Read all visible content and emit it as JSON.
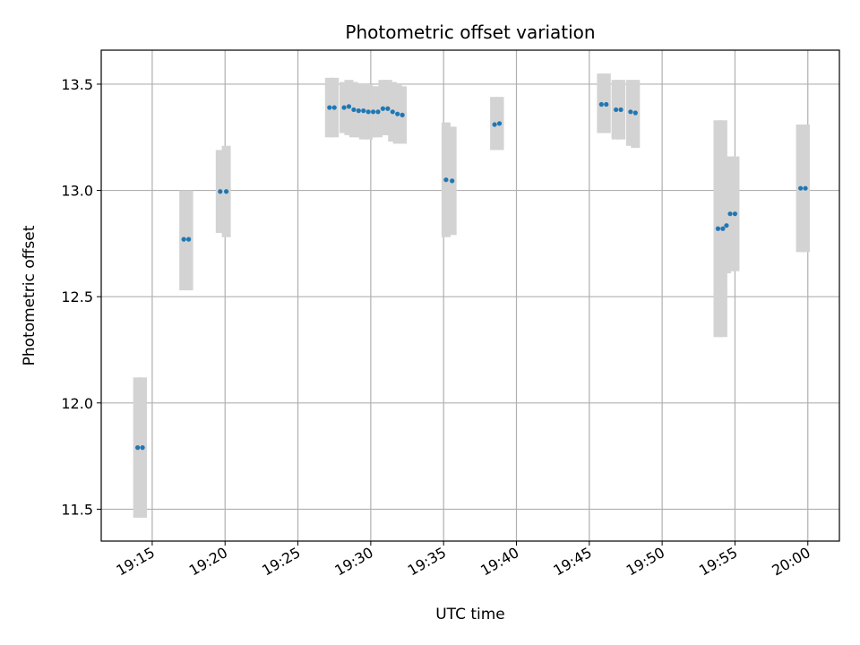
{
  "chart_data": {
    "type": "scatter",
    "title": "Photometric offset variation",
    "xlabel": "UTC time",
    "ylabel": "Photometric offset",
    "xlim": [
      "19:11:30",
      "20:02:10"
    ],
    "ylim": [
      11.35,
      13.66
    ],
    "grid": true,
    "x_ticks": [
      "19:15",
      "19:20",
      "19:25",
      "19:30",
      "19:35",
      "19:40",
      "19:45",
      "19:50",
      "19:55",
      "20:00"
    ],
    "y_ticks": [
      "11.5",
      "12.0",
      "12.5",
      "13.0",
      "13.5"
    ],
    "colors": {
      "points": "#1f77b4",
      "errorbars": "#d3d3d3",
      "grid": "#b0b0b0"
    },
    "series": [
      {
        "x": [
          "19:14:00",
          "19:14:20",
          "19:17:10",
          "19:17:30",
          "19:19:40",
          "19:20:05",
          "19:27:10",
          "19:27:30",
          "19:28:10",
          "19:28:30",
          "19:28:50",
          "19:29:10",
          "19:29:30",
          "19:29:50",
          "19:30:10",
          "19:30:30",
          "19:30:50",
          "19:31:10",
          "19:31:30",
          "19:31:50",
          "19:32:10",
          "19:35:10",
          "19:35:35",
          "19:38:30",
          "19:38:50",
          "19:45:50",
          "19:46:10",
          "19:46:50",
          "19:47:10",
          "19:47:50",
          "19:48:10",
          "19:53:50",
          "19:54:10",
          "19:54:25",
          "19:54:40",
          "19:55:00",
          "19:59:30",
          "19:59:50"
        ],
        "y": [
          11.79,
          11.79,
          12.77,
          12.77,
          12.995,
          12.995,
          13.39,
          13.39,
          13.39,
          13.395,
          13.38,
          13.375,
          13.375,
          13.37,
          13.37,
          13.37,
          13.385,
          13.385,
          13.37,
          13.36,
          13.355,
          13.05,
          13.045,
          13.31,
          13.315,
          13.405,
          13.405,
          13.38,
          13.38,
          13.37,
          13.365,
          12.82,
          12.82,
          12.835,
          12.89,
          12.89,
          13.01,
          13.01
        ],
        "err_low": [
          11.46,
          11.46,
          12.53,
          12.53,
          12.8,
          12.78,
          13.25,
          13.25,
          13.27,
          13.26,
          13.25,
          13.25,
          13.24,
          13.24,
          13.25,
          13.25,
          13.26,
          13.26,
          13.23,
          13.22,
          13.22,
          12.78,
          12.79,
          13.19,
          13.19,
          13.27,
          13.27,
          13.24,
          13.24,
          13.21,
          13.2,
          12.31,
          12.31,
          12.61,
          12.62,
          12.62,
          12.71,
          12.71
        ],
        "err_high": [
          12.12,
          12.12,
          13.0,
          13.0,
          13.19,
          13.21,
          13.53,
          13.53,
          13.51,
          13.52,
          13.51,
          13.5,
          13.5,
          13.5,
          13.49,
          13.49,
          13.52,
          13.52,
          13.51,
          13.5,
          13.49,
          13.32,
          13.3,
          13.44,
          13.44,
          13.55,
          13.55,
          13.52,
          13.52,
          13.52,
          13.52,
          13.33,
          13.33,
          13.06,
          13.16,
          13.16,
          13.31,
          13.31
        ]
      }
    ]
  }
}
